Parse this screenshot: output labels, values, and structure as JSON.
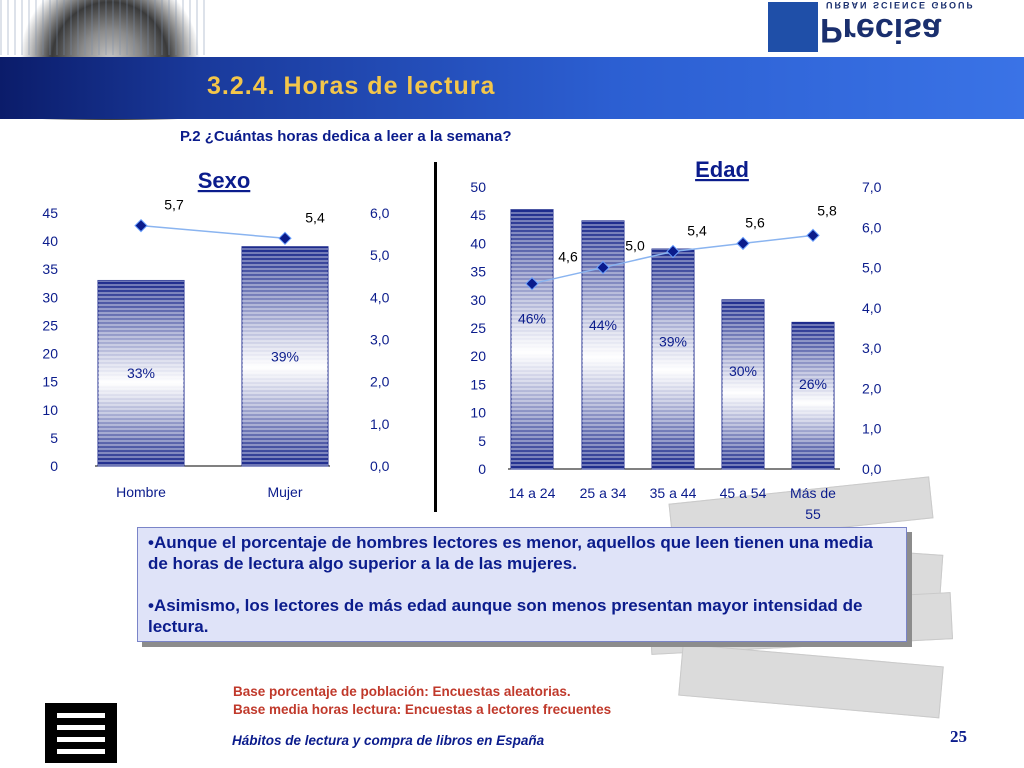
{
  "header": {
    "title": "3.2.4. Horas de lectura",
    "logo_word": "Precisa",
    "logo_sub": "URBAN SCIENCE GROUP"
  },
  "question": "P.2 ¿Cuántas horas dedica a leer a la semana?",
  "insight": {
    "text1": "•Aunque el porcentaje de hombres lectores es menor, aquellos que leen tienen una media de horas de lectura algo superior a la de las mujeres.",
    "text2": "•Asimismo, los lectores de más edad aunque son menos presentan mayor intensidad de lectura."
  },
  "base_notes": {
    "line1": "Base porcentaje de población: Encuestas aleatorias.",
    "line2": "Base media horas lectura: Encuestas a lectores frecuentes"
  },
  "footer": {
    "title": "Hábitos de lectura y compra de libros en España",
    "page": "25"
  },
  "colors": {
    "bar_dark": "#1c2a8c",
    "bar_light": "#ffffff",
    "line": "#8ab4f0",
    "marker": "#0b1c8c",
    "pct_text": "#0b1c8c",
    "title_blue": "#0b1c8c"
  },
  "chart_data": [
    {
      "type": "bar",
      "title": "Sexo",
      "categories": [
        "Hombre",
        "Mujer"
      ],
      "series": [
        {
          "values": [
            33,
            39
          ],
          "labels": [
            "33%",
            "39%"
          ],
          "axis": "left"
        },
        {
          "type": "line",
          "values": [
            5.7,
            5.4
          ],
          "labels": [
            "5,7",
            "5,4"
          ],
          "axis": "right"
        }
      ],
      "yticks_left": [
        "0",
        "5",
        "10",
        "15",
        "20",
        "25",
        "30",
        "35",
        "40",
        "45"
      ],
      "ylim_left": [
        0,
        45
      ],
      "yticks_right": [
        "0,0",
        "1,0",
        "2,0",
        "3,0",
        "4,0",
        "5,0",
        "6,0"
      ],
      "ylim_right": [
        0,
        6.0
      ]
    },
    {
      "type": "bar",
      "title": "Edad",
      "categories": [
        "14 a 24",
        "25 a 34",
        "35 a 44",
        "45 a 54",
        "Más de 55"
      ],
      "series": [
        {
          "values": [
            46,
            44,
            39,
            30,
            26
          ],
          "labels": [
            "46%",
            "44%",
            "39%",
            "30%",
            "26%"
          ],
          "axis": "left"
        },
        {
          "type": "line",
          "values": [
            4.6,
            5.0,
            5.4,
            5.6,
            5.8
          ],
          "labels": [
            "4,6",
            "5,0",
            "5,4",
            "5,6",
            "5,8"
          ],
          "axis": "right"
        }
      ],
      "yticks_left": [
        "0",
        "5",
        "10",
        "15",
        "20",
        "25",
        "30",
        "35",
        "40",
        "45",
        "50"
      ],
      "ylim_left": [
        0,
        50
      ],
      "yticks_right": [
        "0,0",
        "1,0",
        "2,0",
        "3,0",
        "4,0",
        "5,0",
        "6,0",
        "7,0"
      ],
      "ylim_right": [
        0,
        7.0
      ]
    }
  ]
}
